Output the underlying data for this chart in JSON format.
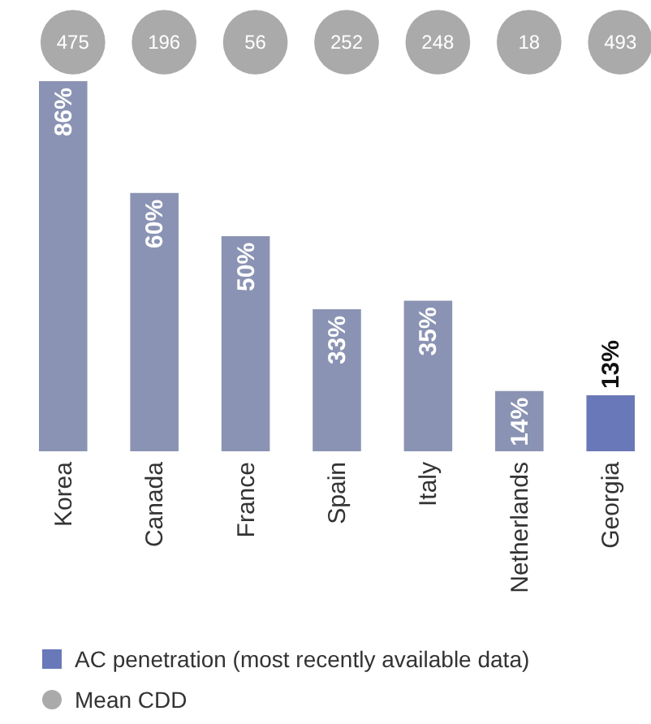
{
  "chart_data": [
    {
      "type": "other",
      "series": [
        {
          "name": "Mean CDD",
          "color": "#aaaaaa",
          "values": [
            475,
            196,
            56,
            252,
            248,
            18,
            493
          ],
          "value_labels": [
            "475",
            "196",
            "56",
            "252",
            "248",
            "18",
            "493"
          ]
        }
      ],
      "legend": "bottom"
    },
    {
      "type": "bar",
      "categories": [
        "Korea",
        "Canada",
        "France",
        "Spain",
        "Italy",
        "Netherlands",
        "Georgia"
      ],
      "series": [
        {
          "name": "AC penetration (most recently available data)",
          "color": "#6978b8",
          "colors": [
            "#8a93b3",
            "#8a93b3",
            "#8a93b3",
            "#8a93b3",
            "#8a93b3",
            "#8a93b3",
            "#6978b8"
          ],
          "values": [
            86,
            60,
            50,
            33,
            35,
            14,
            13
          ],
          "value_labels": [
            "86%",
            "60%",
            "50%",
            "33%",
            "35%",
            "14%",
            "13%"
          ]
        }
      ],
      "legend": "bottom"
    }
  ]
}
